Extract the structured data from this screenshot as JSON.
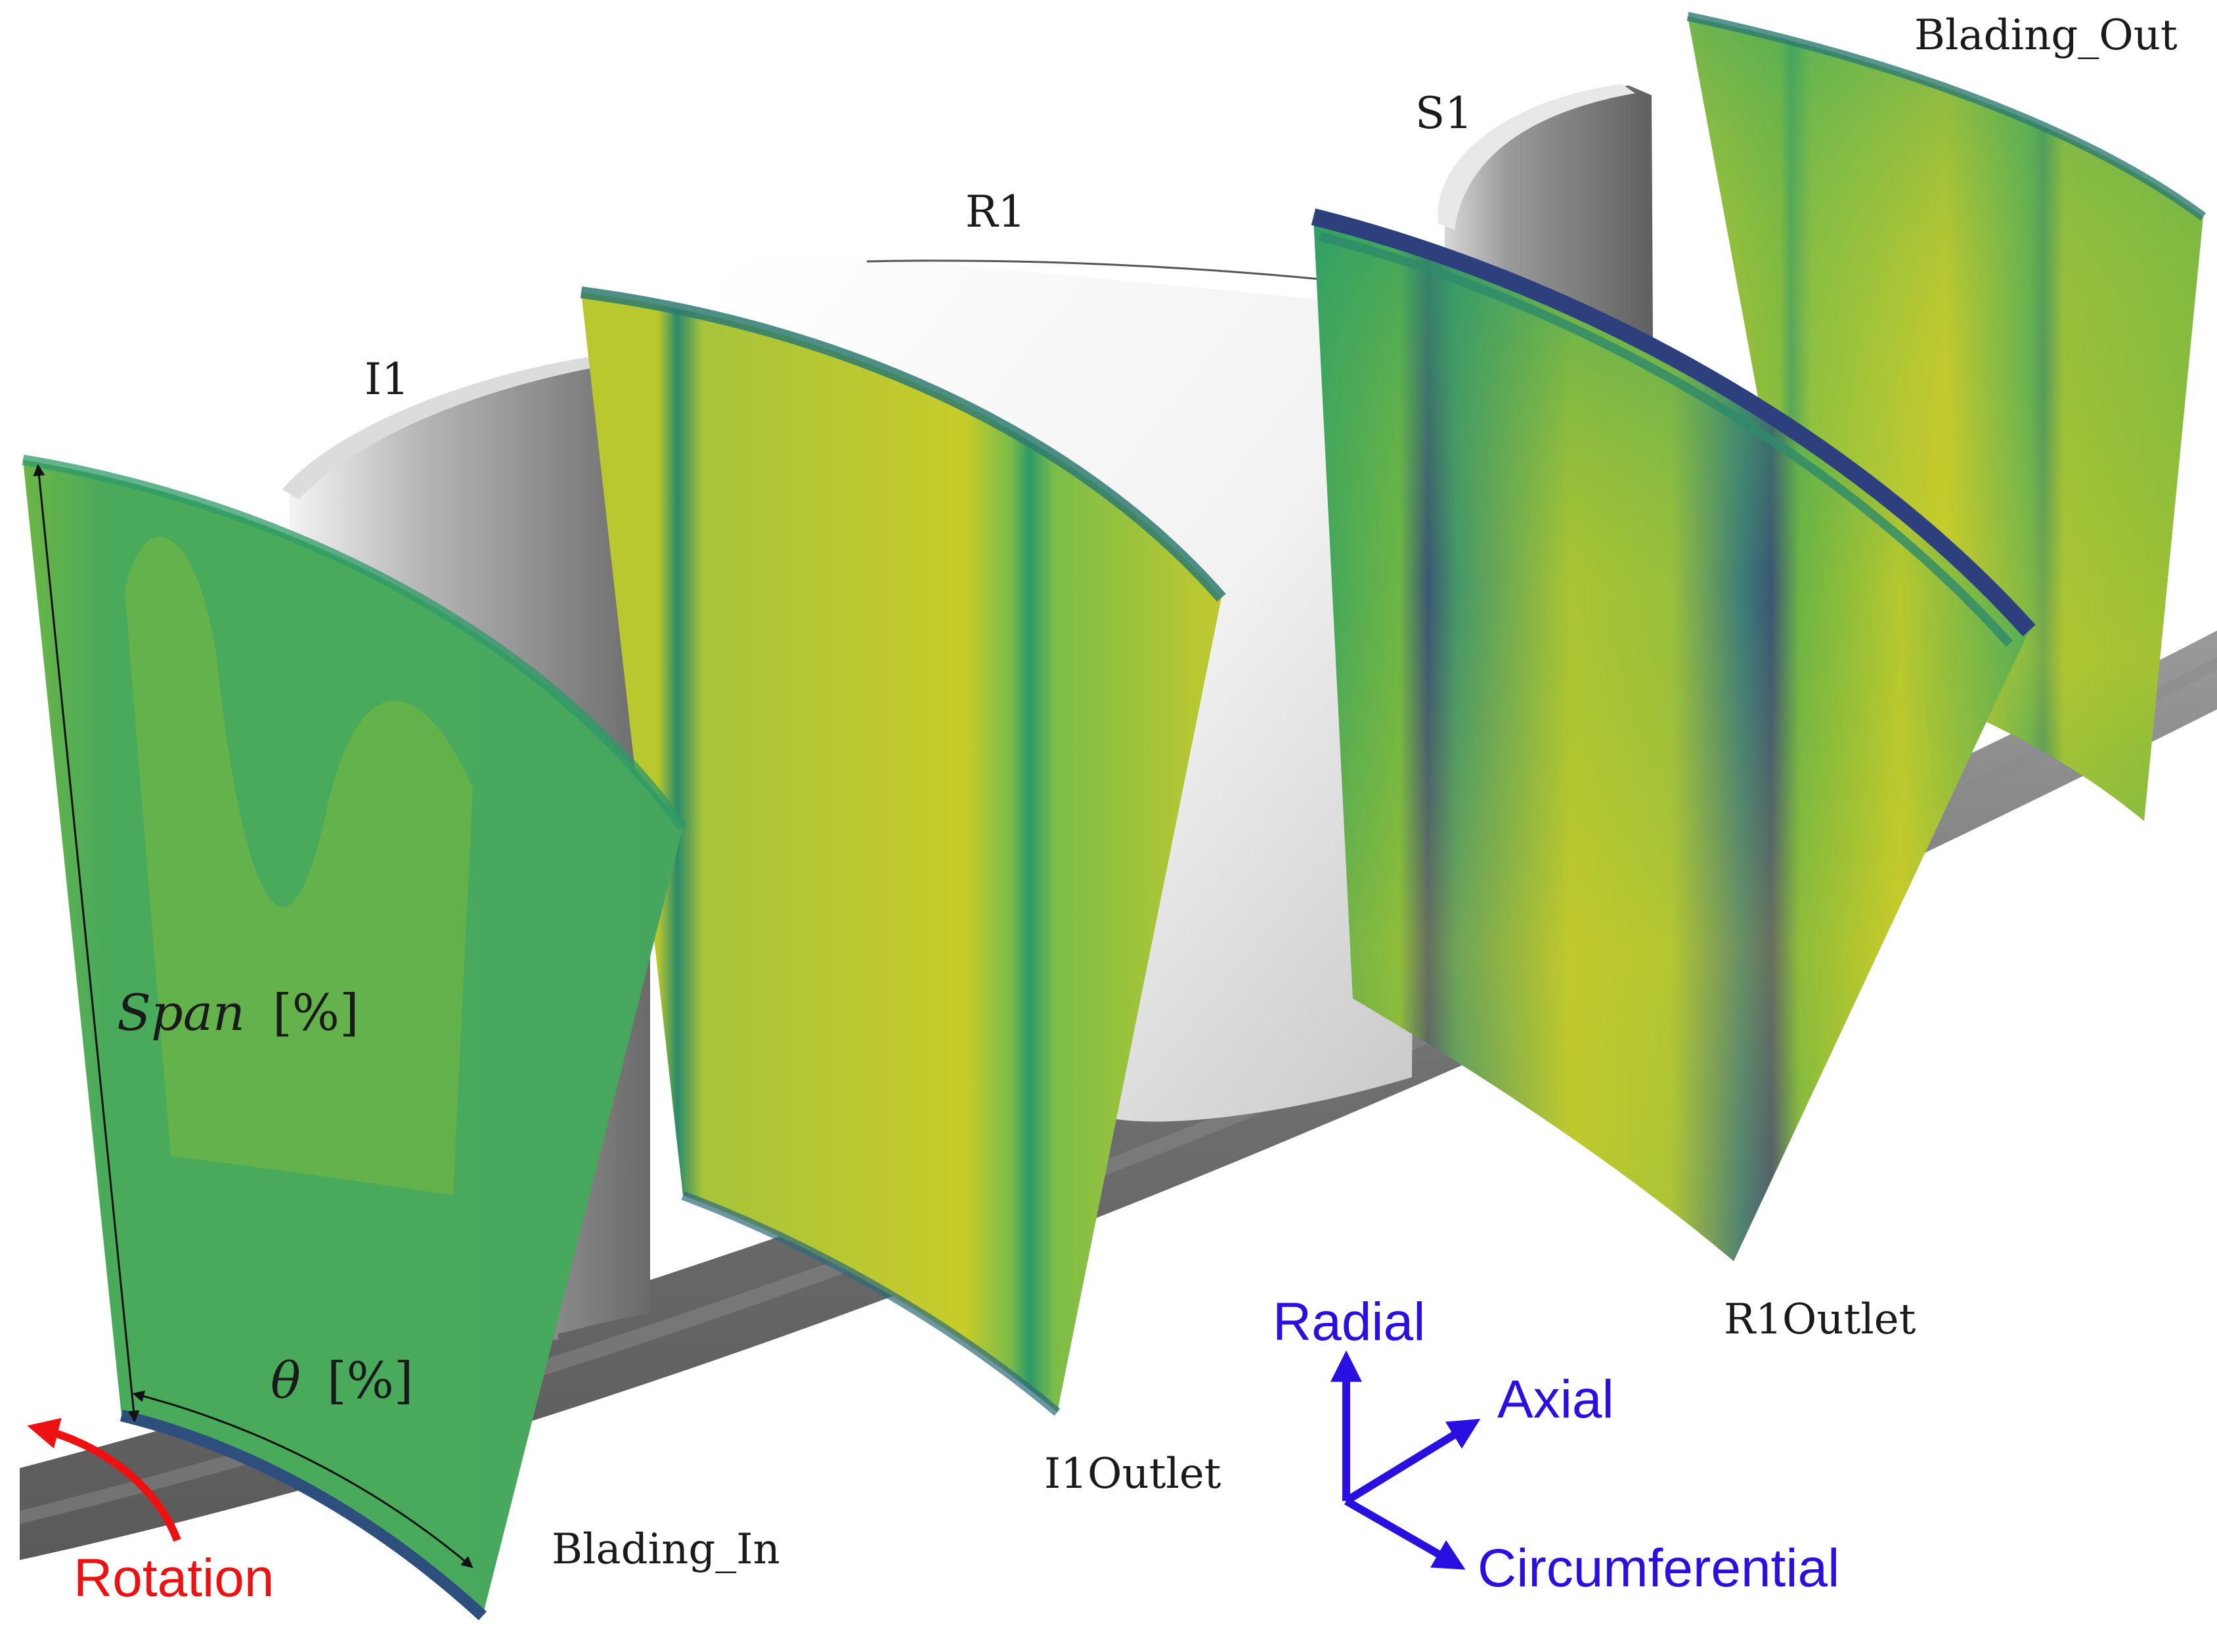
{
  "labels": {
    "stations": {
      "blading_in": "Blading_In",
      "i1_outlet": "I1Outlet",
      "r1_outlet": "R1Outlet",
      "blading_out": "Blading_Out"
    },
    "blades": {
      "i1": "I1",
      "r1": "R1",
      "s1": "S1"
    },
    "span": "Span",
    "span_unit": "[%]",
    "theta": "θ",
    "theta_unit": "[%]",
    "rotation": "Rotation",
    "axes": {
      "radial": "Radial",
      "axial": "Axial",
      "circumferential": "Circumferential"
    }
  },
  "colors": {
    "axes_blue": "#2a10e0",
    "rotation_red": "#ee1111",
    "contour_green": "#4aaa5c",
    "contour_yellow": "#c8cc2a",
    "contour_dark": "#2e3f7e",
    "hub_grey": "#777777"
  }
}
